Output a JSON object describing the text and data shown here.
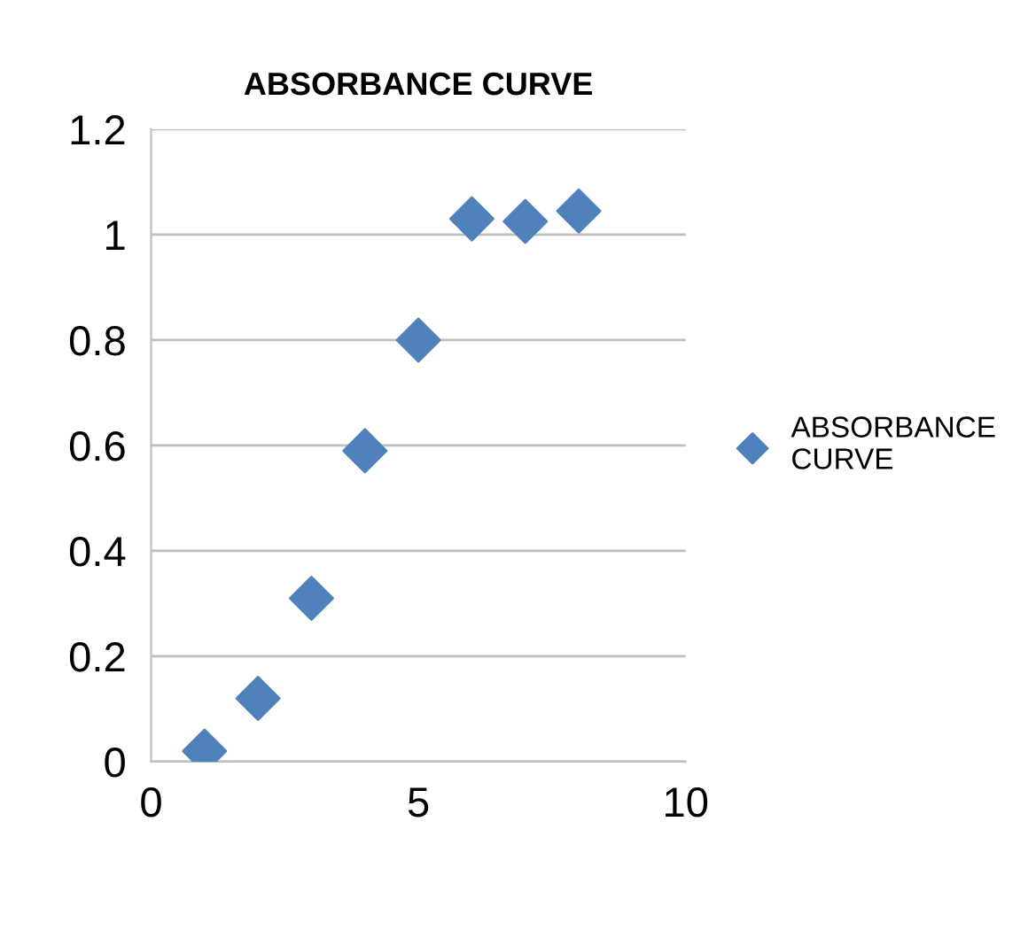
{
  "chart_data": {
    "type": "scatter",
    "title": "ABSORBANCE CURVE",
    "x": [
      1,
      2,
      3,
      4,
      5,
      6,
      7,
      8
    ],
    "series": [
      {
        "name": "ABSORBANCE CURVE",
        "color": "#4f81bd",
        "values": [
          0.02,
          0.12,
          0.31,
          0.59,
          0.8,
          1.03,
          1.025,
          1.045
        ]
      }
    ],
    "xlim": [
      0,
      10
    ],
    "xticks": [
      0,
      5,
      10
    ],
    "ylim": [
      0,
      1.2
    ],
    "yticks": [
      0,
      0.2,
      0.4,
      0.6,
      0.8,
      1,
      1.2
    ],
    "grid": "y",
    "legend": "right",
    "marker": "diamond"
  }
}
